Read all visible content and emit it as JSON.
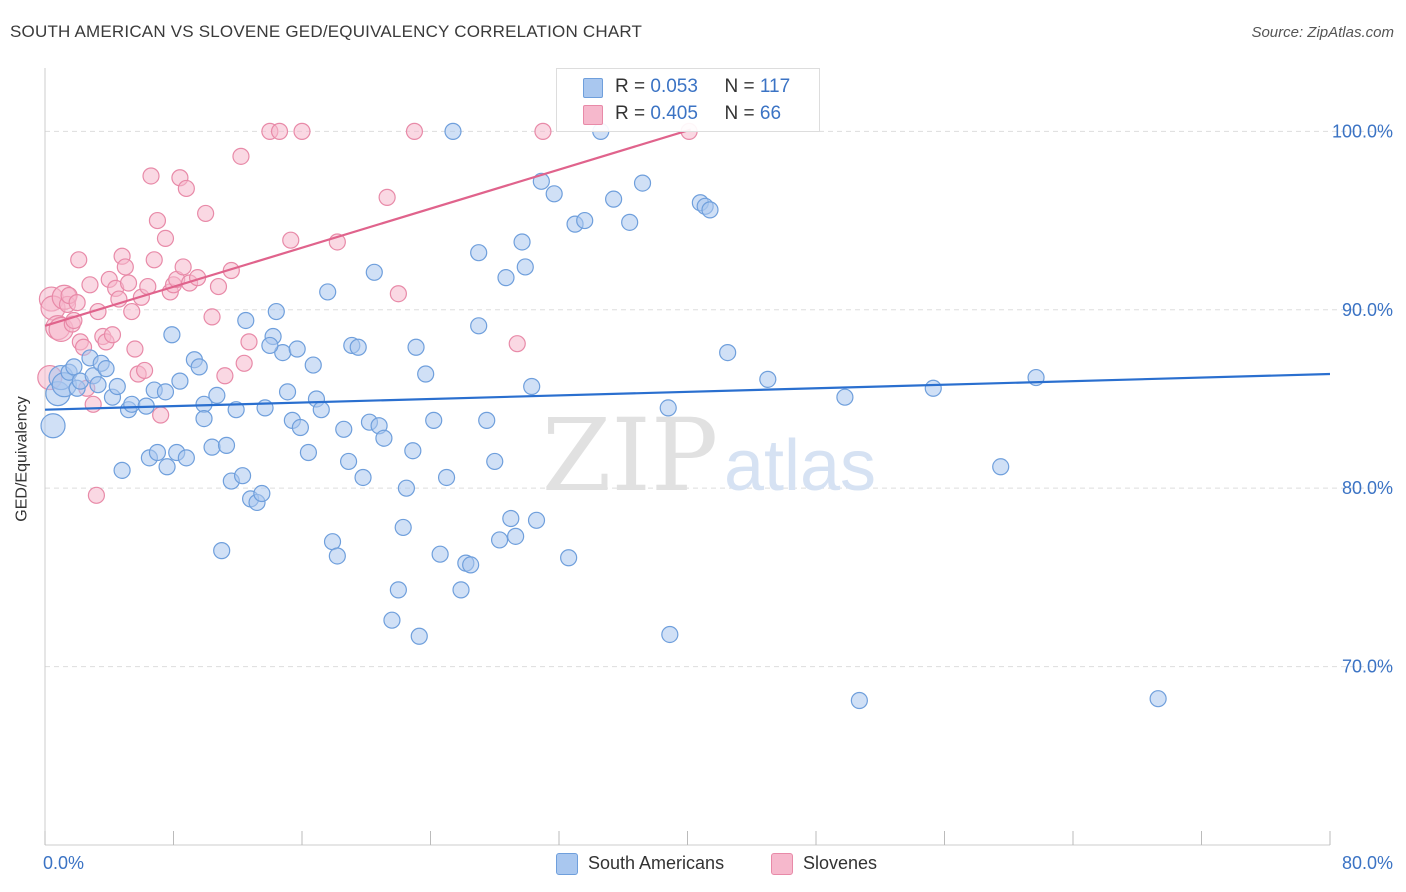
{
  "header": {
    "title": "SOUTH AMERICAN VS SLOVENE GED/EQUIVALENCY CORRELATION CHART",
    "source": "Source: ZipAtlas.com"
  },
  "watermark": {
    "zip": "ZIP",
    "atlas": "atlas"
  },
  "legend_top": {
    "rows": [
      {
        "r_label": "R =",
        "r_value": "0.053",
        "n_label": "N =",
        "n_value": "117"
      },
      {
        "r_label": "R =",
        "r_value": "0.405",
        "n_label": "N =",
        "n_value": "66"
      }
    ]
  },
  "legend_bottom": {
    "items": [
      "South Americans",
      "Slovenes"
    ]
  },
  "colors": {
    "blue_fill": "#a9c7ef",
    "blue_stroke": "#6f9fdc",
    "blue_line": "#2a6fcf",
    "pink_fill": "#f6b8cc",
    "pink_stroke": "#e88aa8",
    "pink_line": "#e0638c",
    "tick_label": "#3b73c4",
    "grid": "#dddddd"
  },
  "chart_data": {
    "type": "scatter",
    "title": "SOUTH AMERICAN VS SLOVENE GED/EQUIVALENCY CORRELATION CHART",
    "xlabel": "",
    "ylabel": "GED/Equivalency",
    "xlim": [
      0,
      80
    ],
    "ylim": [
      60,
      104
    ],
    "x_tick_labels": [
      "0.0%",
      "80.0%"
    ],
    "y_ticks": [
      70,
      80,
      90,
      100
    ],
    "y_tick_labels": [
      "70.0%",
      "80.0%",
      "90.0%",
      "100.0%"
    ],
    "grid": true,
    "legend_position": "bottom",
    "series": [
      {
        "name": "South Americans",
        "r": 0.053,
        "n": 117,
        "trend": {
          "x": [
            0,
            80
          ],
          "y": [
            84.4,
            86.4
          ]
        },
        "points": [
          [
            0.5,
            83.5
          ],
          [
            0.8,
            85.3
          ],
          [
            1.0,
            86.2
          ],
          [
            1.2,
            85.8
          ],
          [
            1.5,
            86.5
          ],
          [
            1.8,
            86.8
          ],
          [
            2.0,
            85.6
          ],
          [
            2.2,
            86.0
          ],
          [
            2.8,
            87.3
          ],
          [
            3.0,
            86.3
          ],
          [
            3.3,
            85.8
          ],
          [
            3.5,
            87.0
          ],
          [
            3.8,
            86.7
          ],
          [
            4.2,
            85.1
          ],
          [
            4.5,
            85.7
          ],
          [
            4.8,
            81.0
          ],
          [
            5.2,
            84.4
          ],
          [
            5.4,
            84.7
          ],
          [
            6.3,
            84.6
          ],
          [
            6.5,
            81.7
          ],
          [
            6.8,
            85.5
          ],
          [
            7.0,
            82.0
          ],
          [
            7.5,
            85.4
          ],
          [
            7.6,
            81.2
          ],
          [
            7.9,
            88.6
          ],
          [
            8.2,
            82.0
          ],
          [
            8.4,
            86.0
          ],
          [
            8.8,
            81.7
          ],
          [
            9.3,
            87.2
          ],
          [
            9.6,
            86.8
          ],
          [
            9.9,
            84.7
          ],
          [
            9.9,
            83.9
          ],
          [
            10.4,
            82.3
          ],
          [
            10.7,
            85.2
          ],
          [
            11.0,
            76.5
          ],
          [
            11.3,
            82.4
          ],
          [
            11.6,
            80.4
          ],
          [
            11.9,
            84.4
          ],
          [
            12.3,
            80.7
          ],
          [
            12.5,
            89.4
          ],
          [
            12.8,
            79.4
          ],
          [
            13.2,
            79.2
          ],
          [
            13.5,
            79.7
          ],
          [
            13.7,
            84.5
          ],
          [
            14.2,
            88.5
          ],
          [
            14.4,
            89.9
          ],
          [
            14.8,
            87.6
          ],
          [
            15.1,
            85.4
          ],
          [
            15.4,
            83.8
          ],
          [
            15.7,
            87.8
          ],
          [
            15.9,
            83.4
          ],
          [
            16.4,
            82.0
          ],
          [
            16.7,
            86.9
          ],
          [
            16.9,
            85.0
          ],
          [
            17.2,
            84.4
          ],
          [
            17.6,
            91.0
          ],
          [
            17.9,
            77.0
          ],
          [
            18.2,
            76.2
          ],
          [
            18.6,
            83.3
          ],
          [
            18.9,
            81.5
          ],
          [
            19.1,
            88.0
          ],
          [
            19.5,
            87.9
          ],
          [
            19.8,
            80.6
          ],
          [
            20.2,
            83.7
          ],
          [
            20.5,
            92.1
          ],
          [
            20.8,
            83.5
          ],
          [
            21.1,
            82.8
          ],
          [
            21.6,
            72.6
          ],
          [
            22.0,
            74.3
          ],
          [
            22.3,
            77.8
          ],
          [
            22.5,
            80.0
          ],
          [
            22.9,
            82.1
          ],
          [
            23.1,
            87.9
          ],
          [
            23.3,
            71.7
          ],
          [
            23.7,
            86.4
          ],
          [
            24.2,
            83.8
          ],
          [
            24.6,
            76.3
          ],
          [
            25.0,
            80.6
          ],
          [
            25.4,
            100.0
          ],
          [
            25.9,
            74.3
          ],
          [
            26.2,
            75.8
          ],
          [
            26.5,
            75.7
          ],
          [
            27.0,
            89.1
          ],
          [
            27.0,
            93.2
          ],
          [
            27.5,
            83.8
          ],
          [
            28.0,
            81.5
          ],
          [
            28.3,
            77.1
          ],
          [
            28.7,
            91.8
          ],
          [
            29.0,
            78.3
          ],
          [
            29.3,
            77.3
          ],
          [
            29.7,
            93.8
          ],
          [
            29.9,
            92.4
          ],
          [
            30.3,
            85.7
          ],
          [
            30.6,
            78.2
          ],
          [
            30.9,
            97.2
          ],
          [
            31.7,
            96.5
          ],
          [
            32.6,
            76.1
          ],
          [
            33.0,
            94.8
          ],
          [
            33.6,
            95.0
          ],
          [
            34.6,
            100.0
          ],
          [
            35.4,
            96.2
          ],
          [
            36.4,
            94.9
          ],
          [
            37.2,
            97.1
          ],
          [
            38.8,
            84.5
          ],
          [
            38.9,
            71.8
          ],
          [
            40.8,
            96.0
          ],
          [
            41.1,
            95.8
          ],
          [
            41.4,
            95.6
          ],
          [
            42.5,
            87.6
          ],
          [
            49.8,
            85.1
          ],
          [
            50.7,
            68.1
          ],
          [
            59.5,
            81.2
          ],
          [
            61.7,
            86.2
          ],
          [
            69.3,
            68.2
          ],
          [
            45.0,
            86.1
          ],
          [
            55.3,
            85.6
          ],
          [
            14.0,
            88.0
          ]
        ]
      },
      {
        "name": "Slovenes",
        "r": 0.405,
        "n": 66,
        "trend": {
          "x": [
            0,
            40.2
          ],
          "y": [
            89.1,
            100.1
          ]
        },
        "points": [
          [
            0.3,
            86.2
          ],
          [
            0.4,
            90.6
          ],
          [
            0.5,
            90.1
          ],
          [
            0.8,
            89.0
          ],
          [
            1.0,
            88.9
          ],
          [
            1.2,
            90.7
          ],
          [
            1.4,
            90.3
          ],
          [
            1.5,
            90.8
          ],
          [
            1.7,
            89.2
          ],
          [
            1.8,
            89.4
          ],
          [
            2.0,
            90.4
          ],
          [
            2.1,
            92.8
          ],
          [
            2.2,
            88.2
          ],
          [
            2.4,
            87.9
          ],
          [
            2.6,
            85.6
          ],
          [
            2.8,
            91.4
          ],
          [
            3.0,
            84.7
          ],
          [
            3.2,
            79.6
          ],
          [
            3.3,
            89.9
          ],
          [
            3.6,
            88.5
          ],
          [
            3.8,
            88.2
          ],
          [
            4.0,
            91.7
          ],
          [
            4.2,
            88.6
          ],
          [
            4.4,
            91.2
          ],
          [
            4.6,
            90.6
          ],
          [
            4.8,
            93.0
          ],
          [
            5.0,
            92.4
          ],
          [
            5.2,
            91.5
          ],
          [
            5.4,
            89.9
          ],
          [
            5.6,
            87.8
          ],
          [
            5.8,
            86.4
          ],
          [
            6.0,
            90.7
          ],
          [
            6.2,
            86.6
          ],
          [
            6.4,
            91.3
          ],
          [
            6.6,
            97.5
          ],
          [
            6.8,
            92.8
          ],
          [
            7.0,
            95.0
          ],
          [
            7.2,
            84.1
          ],
          [
            7.5,
            94.0
          ],
          [
            7.8,
            91.0
          ],
          [
            8.0,
            91.4
          ],
          [
            8.2,
            91.7
          ],
          [
            8.4,
            97.4
          ],
          [
            8.6,
            92.4
          ],
          [
            8.8,
            96.8
          ],
          [
            9.0,
            91.5
          ],
          [
            9.5,
            91.8
          ],
          [
            10.0,
            95.4
          ],
          [
            10.4,
            89.6
          ],
          [
            10.8,
            91.3
          ],
          [
            11.2,
            86.3
          ],
          [
            11.6,
            92.2
          ],
          [
            12.2,
            98.6
          ],
          [
            12.4,
            87.0
          ],
          [
            12.7,
            88.2
          ],
          [
            14.0,
            100.0
          ],
          [
            14.6,
            100.0
          ],
          [
            15.3,
            93.9
          ],
          [
            16.0,
            100.0
          ],
          [
            18.2,
            93.8
          ],
          [
            21.3,
            96.3
          ],
          [
            22.0,
            90.9
          ],
          [
            23.0,
            100.0
          ],
          [
            29.4,
            88.1
          ],
          [
            31.0,
            100.0
          ],
          [
            40.1,
            100.0
          ]
        ]
      }
    ]
  }
}
